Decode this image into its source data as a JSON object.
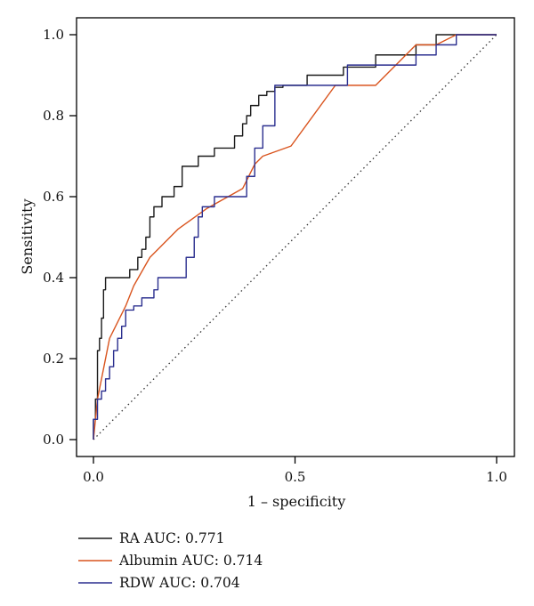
{
  "chart_data": {
    "type": "line",
    "title": "",
    "xlabel": "1 – specificity",
    "ylabel": "Sensitivity",
    "xlim": [
      0,
      1
    ],
    "ylim": [
      0,
      1
    ],
    "x_ticks": [
      0.0,
      0.5,
      1.0
    ],
    "x_tick_labels": [
      "0.0",
      "0.5",
      "1.0"
    ],
    "y_ticks": [
      0.0,
      0.2,
      0.4,
      0.6,
      0.8,
      1.0
    ],
    "y_tick_labels": [
      "0.0",
      "0.2",
      "0.4",
      "0.6",
      "0.8",
      "1.0"
    ],
    "grid": false,
    "legend_position": "bottom-left",
    "reference_line": {
      "style": "dotted",
      "from": [
        0,
        0
      ],
      "to": [
        1,
        1
      ],
      "color": "#000000"
    },
    "series": [
      {
        "name": "RA AUC: 0.771",
        "color": "#1a1a1a",
        "step": true,
        "x": [
          0.0,
          0.005,
          0.01,
          0.015,
          0.02,
          0.025,
          0.03,
          0.035,
          0.04,
          0.05,
          0.07,
          0.09,
          0.11,
          0.12,
          0.13,
          0.14,
          0.15,
          0.16,
          0.17,
          0.2,
          0.22,
          0.26,
          0.3,
          0.35,
          0.37,
          0.38,
          0.39,
          0.41,
          0.43,
          0.45,
          0.47,
          0.48,
          0.5,
          0.53,
          0.62,
          0.7,
          0.8,
          0.85,
          0.87,
          1.0
        ],
        "y": [
          0.0,
          0.05,
          0.1,
          0.22,
          0.25,
          0.3,
          0.37,
          0.4,
          0.4,
          0.4,
          0.4,
          0.4,
          0.42,
          0.45,
          0.47,
          0.5,
          0.55,
          0.575,
          0.575,
          0.6,
          0.625,
          0.675,
          0.7,
          0.72,
          0.75,
          0.78,
          0.8,
          0.825,
          0.85,
          0.86,
          0.87,
          0.875,
          0.875,
          0.875,
          0.9,
          0.92,
          0.95,
          0.975,
          1.0,
          1.0
        ]
      },
      {
        "name": "Albumin AUC: 0.714",
        "color": "#d9541e",
        "step": false,
        "x": [
          0.0,
          0.01,
          0.02,
          0.04,
          0.08,
          0.1,
          0.14,
          0.17,
          0.21,
          0.28,
          0.37,
          0.4,
          0.42,
          0.49,
          0.6,
          0.7,
          0.8,
          0.85,
          0.9,
          1.0
        ],
        "y": [
          0.0,
          0.1,
          0.15,
          0.25,
          0.33,
          0.38,
          0.45,
          0.48,
          0.52,
          0.57,
          0.62,
          0.68,
          0.7,
          0.725,
          0.875,
          0.875,
          0.975,
          0.975,
          1.0,
          1.0
        ]
      },
      {
        "name": "RDW AUC: 0.704",
        "color": "#2b2f8f",
        "step": true,
        "x": [
          0.0,
          0.01,
          0.02,
          0.03,
          0.04,
          0.05,
          0.06,
          0.07,
          0.08,
          0.1,
          0.12,
          0.15,
          0.16,
          0.17,
          0.23,
          0.25,
          0.26,
          0.27,
          0.3,
          0.33,
          0.38,
          0.4,
          0.42,
          0.45,
          0.55,
          0.63,
          0.68,
          0.8,
          0.85,
          0.9,
          0.93,
          1.0
        ],
        "y": [
          0.0,
          0.05,
          0.1,
          0.12,
          0.15,
          0.18,
          0.22,
          0.25,
          0.28,
          0.32,
          0.33,
          0.35,
          0.37,
          0.4,
          0.4,
          0.45,
          0.5,
          0.55,
          0.575,
          0.6,
          0.6,
          0.65,
          0.72,
          0.775,
          0.875,
          0.875,
          0.925,
          0.925,
          0.95,
          0.975,
          1.0,
          1.0
        ]
      }
    ]
  }
}
